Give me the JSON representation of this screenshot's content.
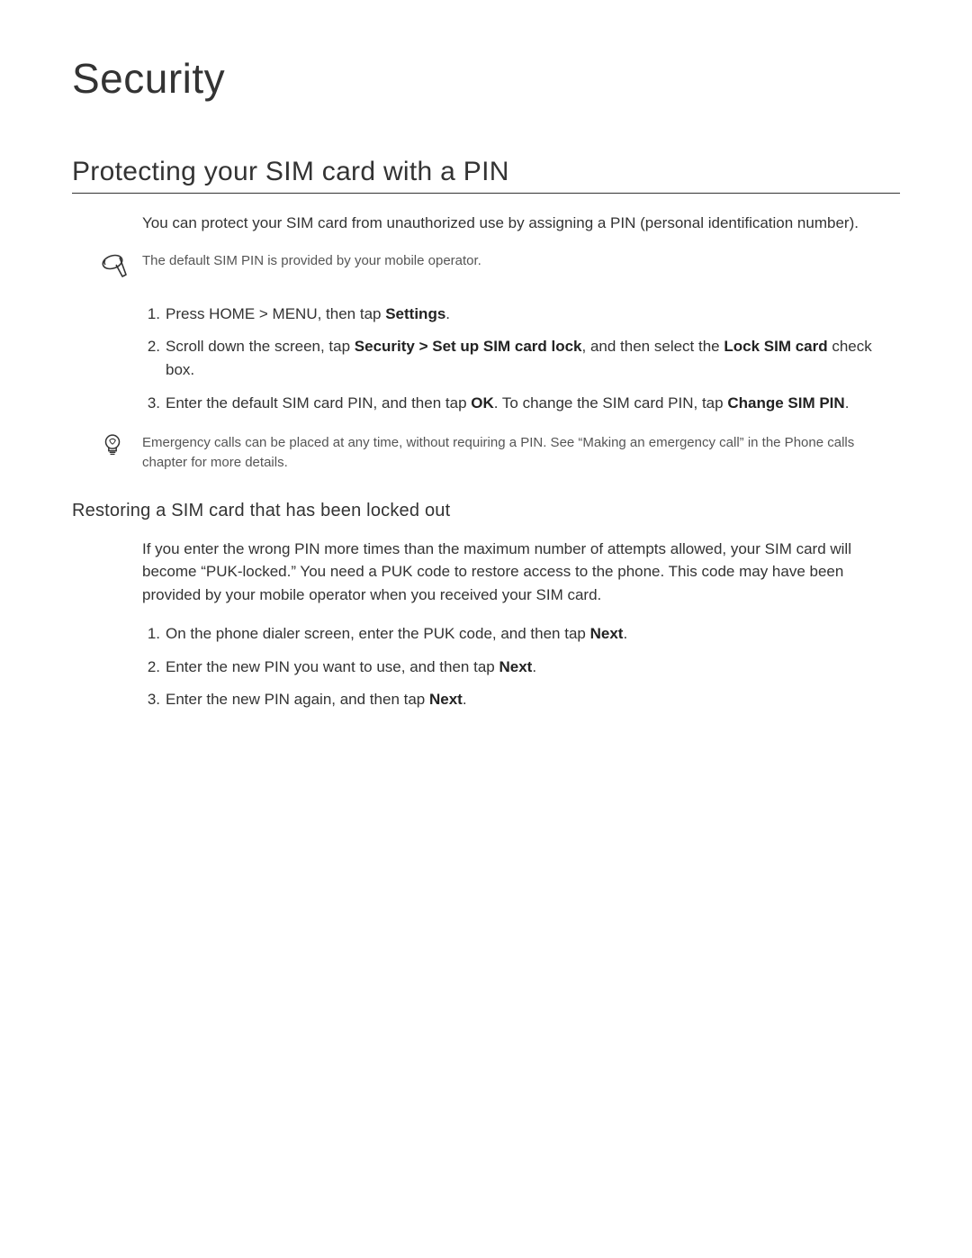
{
  "page": {
    "title": "Security",
    "background_color": "#ffffff",
    "text_color": "#333333",
    "note_text_color": "#555555",
    "border_color": "#333333",
    "title_fontsize": 46,
    "section_fontsize": 30,
    "body_fontsize": 17,
    "note_fontsize": 15,
    "subsection_fontsize": 20
  },
  "section1": {
    "heading": "Protecting your SIM card with a PIN",
    "intro": "You can protect your SIM card from unauthorized use by assigning a PIN (personal identification number).",
    "note1": "The default SIM PIN is provided by your mobile operator.",
    "steps": [
      {
        "num": "1.",
        "parts": [
          {
            "text": "Press HOME > MENU, then tap ",
            "bold": false
          },
          {
            "text": "Settings",
            "bold": true
          },
          {
            "text": ".",
            "bold": false
          }
        ]
      },
      {
        "num": "2.",
        "parts": [
          {
            "text": "Scroll down the screen, tap ",
            "bold": false
          },
          {
            "text": "Security > Set up SIM card lock",
            "bold": true
          },
          {
            "text": ", and then select the ",
            "bold": false
          },
          {
            "text": "Lock SIM card",
            "bold": true
          },
          {
            "text": " check box.",
            "bold": false
          }
        ]
      },
      {
        "num": "3.",
        "parts": [
          {
            "text": "Enter the default SIM card PIN, and then tap ",
            "bold": false
          },
          {
            "text": "OK",
            "bold": true
          },
          {
            "text": ". To change the SIM card PIN, tap ",
            "bold": false
          },
          {
            "text": "Change SIM PIN",
            "bold": true
          },
          {
            "text": ".",
            "bold": false
          }
        ]
      }
    ],
    "tip": "Emergency calls can be placed at any time, without requiring a PIN. See “Making an emergency call” in the Phone calls chapter for more details."
  },
  "section2": {
    "heading": "Restoring a SIM card that has been locked out",
    "intro": "If you enter the wrong PIN more times than the maximum number of attempts allowed, your SIM card will become “PUK-locked.” You need a PUK code to restore access to the phone. This code may have been provided by your mobile operator when you received your SIM card.",
    "steps": [
      {
        "num": "1.",
        "parts": [
          {
            "text": "On the phone dialer screen, enter the PUK code, and then tap ",
            "bold": false
          },
          {
            "text": "Next",
            "bold": true
          },
          {
            "text": ".",
            "bold": false
          }
        ]
      },
      {
        "num": "2.",
        "parts": [
          {
            "text": "Enter the new PIN you want to use, and then tap ",
            "bold": false
          },
          {
            "text": "Next",
            "bold": true
          },
          {
            "text": ".",
            "bold": false
          }
        ]
      },
      {
        "num": "3.",
        "parts": [
          {
            "text": "Enter the new PIN again, and then tap ",
            "bold": false
          },
          {
            "text": "Next",
            "bold": true
          },
          {
            "text": ".",
            "bold": false
          }
        ]
      }
    ]
  }
}
